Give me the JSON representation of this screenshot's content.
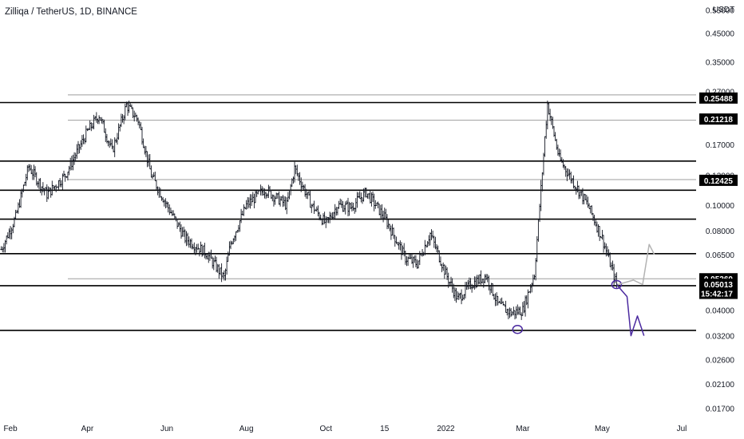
{
  "header": {
    "title": "Zilliqa / TetherUS, 1D, BINANCE",
    "unit": "USDT"
  },
  "colors": {
    "candle": "#131722",
    "support_line": "#000000",
    "gray_line": "#9e9e9e",
    "drawing_purple": "#4b2aa0",
    "drawing_gray": "#b3b3b3",
    "label_bg": "#000000",
    "label_text": "#ffffff"
  },
  "chart_data": {
    "type": "candlestick",
    "scale": "log",
    "ylim": [
      0.016,
      0.6
    ],
    "y_ticks": [
      "0.55000",
      "0.45000",
      "0.35000",
      "0.27000",
      "0.21000",
      "0.17000",
      "0.13000",
      "0.10000",
      "0.08000",
      "0.06500",
      "0.05000",
      "0.04000",
      "0.03200",
      "0.02600",
      "0.02100",
      "0.01700"
    ],
    "y_tick_values": [
      0.55,
      0.45,
      0.35,
      0.27,
      0.21,
      0.17,
      0.13,
      0.1,
      0.08,
      0.065,
      0.05,
      0.04,
      0.032,
      0.026,
      0.021,
      0.017
    ],
    "x_ticks": [
      "Feb",
      "Apr",
      "Jun",
      "Aug",
      "Oct",
      "15",
      "2022",
      "Mar",
      "May",
      "Jul"
    ],
    "x_tick_dates": [
      "2021-02-01",
      "2021-04-01",
      "2021-06-01",
      "2021-08-01",
      "2021-10-01",
      "2021-11-15",
      "2022-01-01",
      "2022-03-01",
      "2022-05-01",
      "2022-07-01"
    ],
    "price_labels": [
      {
        "text": "0.25488",
        "value": 0.25488
      },
      {
        "text": "0.21218",
        "value": 0.21218
      },
      {
        "text": "0.12425",
        "value": 0.12425
      },
      {
        "text": "0.05260",
        "value": 0.0526
      },
      {
        "text": "0.05013",
        "value": 0.05013
      },
      {
        "text": "15:42:17",
        "value": 0.0463
      }
    ],
    "support_levels": [
      0.245,
      0.147,
      0.114,
      0.0885,
      0.0655,
      0.0495,
      0.0335
    ],
    "gray_levels": [
      0.262,
      0.21,
      0.125,
      0.0526
    ],
    "series": [
      {
        "x": [
          "2021-01-25",
          "2021-02-05",
          "2021-02-15",
          "2021-03-01",
          "2021-03-15",
          "2021-04-01",
          "2021-04-10",
          "2021-04-20",
          "2021-05-01",
          "2021-05-10",
          "2021-05-20",
          "2021-06-01",
          "2021-06-15",
          "2021-07-01",
          "2021-07-15",
          "2021-07-20",
          "2021-08-01",
          "2021-08-15",
          "2021-09-01",
          "2021-09-07",
          "2021-09-20",
          "2021-10-01",
          "2021-10-10",
          "2021-10-20",
          "2021-11-01",
          "2021-11-15",
          "2021-12-01",
          "2021-12-10",
          "2021-12-20",
          "2022-01-01",
          "2022-01-10",
          "2022-01-20",
          "2022-02-01",
          "2022-02-10",
          "2022-02-20",
          "2022-03-01",
          "2022-03-10",
          "2022-03-20",
          "2022-03-29",
          "2022-04-10",
          "2022-04-20",
          "2022-05-01",
          "2022-05-08",
          "2022-05-12"
        ],
        "y": [
          0.068,
          0.09,
          0.14,
          0.11,
          0.13,
          0.19,
          0.22,
          0.16,
          0.24,
          0.21,
          0.13,
          0.1,
          0.075,
          0.066,
          0.053,
          0.072,
          0.1,
          0.115,
          0.1,
          0.138,
          0.1,
          0.085,
          0.1,
          0.098,
          0.112,
          0.09,
          0.063,
          0.06,
          0.078,
          0.055,
          0.044,
          0.05,
          0.054,
          0.042,
          0.039,
          0.04,
          0.055,
          0.242,
          0.15,
          0.12,
          0.1,
          0.075,
          0.058,
          0.05
        ]
      }
    ],
    "annotations": [
      {
        "type": "circle",
        "x": "2022-02-25",
        "y": 0.0338
      },
      {
        "type": "circle",
        "x": "2022-05-12",
        "y": 0.05
      },
      {
        "type": "projection_down_up",
        "x": [
          "2022-05-12",
          "2022-05-20",
          "2022-05-23",
          "2022-05-28",
          "2022-06-02"
        ],
        "y": [
          0.05,
          0.045,
          0.032,
          0.038,
          0.032
        ]
      },
      {
        "type": "projection_up",
        "x": [
          "2022-05-13",
          "2022-05-25",
          "2022-06-01",
          "2022-06-06",
          "2022-06-10"
        ],
        "y": [
          0.05,
          0.052,
          0.05,
          0.071,
          0.065
        ]
      }
    ]
  }
}
